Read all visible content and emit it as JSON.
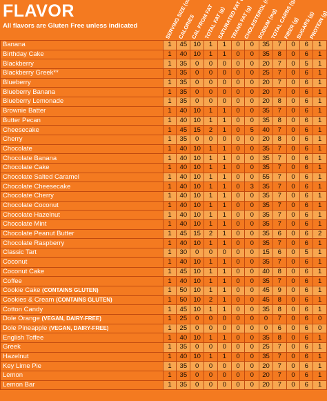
{
  "title": "FLAVOR",
  "subtitle": "All flavors are Gluten Free unless indicated",
  "columns": [
    "SERVING SIZE (oz)",
    "CALORIES",
    "CAL FROM FAT",
    "TOTAL FAT (g)",
    "SATURATED FAT (g)",
    "TRANS FAT (g)",
    "CHOLESTEROL (mg)",
    "SODIUM (mg)",
    "TOTAL CARBS (g)",
    "FIBER (g)",
    "SUGARS (g)",
    "PROTEIN (g)"
  ],
  "rows": [
    {
      "name": "Banana",
      "tag": "",
      "values": [
        "1",
        "45",
        "10",
        "1",
        "1",
        "0",
        "0",
        "35",
        "7",
        "0",
        "6",
        "1"
      ]
    },
    {
      "name": "Birthday Cake",
      "tag": "",
      "values": [
        "1",
        "40",
        "10",
        "1",
        "1",
        "0",
        "0",
        "35",
        "8",
        "0",
        "6",
        "1"
      ]
    },
    {
      "name": "Blackberry",
      "tag": "",
      "values": [
        "1",
        "35",
        "0",
        "0",
        "0",
        "0",
        "0",
        "20",
        "7",
        "0",
        "5",
        "1"
      ]
    },
    {
      "name": "Blackberry Greek**",
      "tag": "",
      "values": [
        "1",
        "35",
        "0",
        "0",
        "0",
        "0",
        "0",
        "25",
        "7",
        "0",
        "6",
        "1"
      ]
    },
    {
      "name": "Blueberry",
      "tag": "",
      "values": [
        "1",
        "35",
        "0",
        "0",
        "0",
        "0",
        "0",
        "20",
        "7",
        "0",
        "6",
        "1"
      ]
    },
    {
      "name": "Blueberry Banana",
      "tag": "",
      "values": [
        "1",
        "35",
        "0",
        "0",
        "0",
        "0",
        "0",
        "20",
        "7",
        "0",
        "6",
        "1"
      ]
    },
    {
      "name": "Blueberry Lemonade",
      "tag": "",
      "values": [
        "1",
        "35",
        "0",
        "0",
        "0",
        "0",
        "0",
        "20",
        "8",
        "0",
        "6",
        "1"
      ]
    },
    {
      "name": "Brownie Batter",
      "tag": "",
      "values": [
        "1",
        "40",
        "10",
        "1",
        "1",
        "0",
        "0",
        "35",
        "7",
        "0",
        "6",
        "1"
      ]
    },
    {
      "name": "Butter Pecan",
      "tag": "",
      "values": [
        "1",
        "40",
        "10",
        "1",
        "1",
        "0",
        "0",
        "35",
        "8",
        "0",
        "6",
        "1"
      ]
    },
    {
      "name": "Cheesecake",
      "tag": "",
      "values": [
        "1",
        "45",
        "15",
        "2",
        "1",
        "0",
        "5",
        "40",
        "7",
        "0",
        "6",
        "1"
      ]
    },
    {
      "name": "Cherry",
      "tag": "",
      "values": [
        "1",
        "35",
        "0",
        "0",
        "0",
        "0",
        "0",
        "20",
        "8",
        "0",
        "6",
        "1"
      ]
    },
    {
      "name": "Chocolate",
      "tag": "",
      "values": [
        "1",
        "40",
        "10",
        "1",
        "1",
        "0",
        "0",
        "35",
        "7",
        "0",
        "6",
        "1"
      ]
    },
    {
      "name": "Chocolate Banana",
      "tag": "",
      "values": [
        "1",
        "40",
        "10",
        "1",
        "1",
        "0",
        "0",
        "35",
        "7",
        "0",
        "6",
        "1"
      ]
    },
    {
      "name": "Chocolate Cake",
      "tag": "",
      "values": [
        "1",
        "40",
        "10",
        "1",
        "1",
        "0",
        "0",
        "35",
        "7",
        "0",
        "6",
        "1"
      ]
    },
    {
      "name": "Chocolate Salted Caramel",
      "tag": "",
      "values": [
        "1",
        "40",
        "10",
        "1",
        "1",
        "0",
        "0",
        "55",
        "7",
        "0",
        "6",
        "1"
      ]
    },
    {
      "name": "Chocolate Cheesecake",
      "tag": "",
      "values": [
        "1",
        "40",
        "10",
        "1",
        "1",
        "0",
        "3",
        "35",
        "7",
        "0",
        "6",
        "1"
      ]
    },
    {
      "name": "Chocolate Cherry",
      "tag": "",
      "values": [
        "1",
        "40",
        "10",
        "1",
        "1",
        "0",
        "0",
        "35",
        "7",
        "0",
        "6",
        "1"
      ]
    },
    {
      "name": "Chocolate Coconut",
      "tag": "",
      "values": [
        "1",
        "40",
        "10",
        "1",
        "1",
        "0",
        "0",
        "35",
        "7",
        "0",
        "6",
        "1"
      ]
    },
    {
      "name": "Chocolate Hazelnut",
      "tag": "",
      "values": [
        "1",
        "40",
        "10",
        "1",
        "1",
        "0",
        "0",
        "35",
        "7",
        "0",
        "6",
        "1"
      ]
    },
    {
      "name": "Chocolate Mint",
      "tag": "",
      "values": [
        "1",
        "40",
        "10",
        "1",
        "1",
        "0",
        "0",
        "35",
        "7",
        "0",
        "6",
        "1"
      ]
    },
    {
      "name": "Chocolate Peanut Butter",
      "tag": "",
      "values": [
        "1",
        "45",
        "15",
        "2",
        "1",
        "0",
        "0",
        "35",
        "6",
        "0",
        "6",
        "2"
      ]
    },
    {
      "name": "Chocolate Raspberry",
      "tag": "",
      "values": [
        "1",
        "40",
        "10",
        "1",
        "1",
        "0",
        "0",
        "35",
        "7",
        "0",
        "6",
        "1"
      ]
    },
    {
      "name": "Classic Tart",
      "tag": "",
      "values": [
        "1",
        "30",
        "0",
        "0",
        "0",
        "0",
        "0",
        "15",
        "6",
        "0",
        "5",
        "1"
      ]
    },
    {
      "name": "Coconut",
      "tag": "",
      "values": [
        "1",
        "40",
        "10",
        "1",
        "1",
        "0",
        "0",
        "35",
        "7",
        "0",
        "6",
        "1"
      ]
    },
    {
      "name": "Coconut Cake",
      "tag": "",
      "values": [
        "1",
        "45",
        "10",
        "1",
        "1",
        "0",
        "0",
        "40",
        "8",
        "0",
        "6",
        "1"
      ]
    },
    {
      "name": "Coffee",
      "tag": "",
      "values": [
        "1",
        "40",
        "10",
        "1",
        "1",
        "0",
        "0",
        "35",
        "7",
        "0",
        "6",
        "1"
      ]
    },
    {
      "name": "Cookie Cake",
      "tag": "(CONTAINS GLUTEN)",
      "values": [
        "1",
        "50",
        "10",
        "1",
        "1",
        "0",
        "0",
        "45",
        "9",
        "0",
        "6",
        "1"
      ]
    },
    {
      "name": "Cookies & Cream",
      "tag": "(CONTAINS GLUTEN)",
      "values": [
        "1",
        "50",
        "10",
        "2",
        "1",
        "0",
        "0",
        "45",
        "8",
        "0",
        "6",
        "1"
      ]
    },
    {
      "name": "Cotton Candy",
      "tag": "",
      "values": [
        "1",
        "45",
        "10",
        "1",
        "1",
        "0",
        "0",
        "35",
        "8",
        "0",
        "6",
        "1"
      ]
    },
    {
      "name": "Dole Orange",
      "tag": "(VEGAN, DAIRY-FREE)",
      "values": [
        "1",
        "25",
        "0",
        "0",
        "0",
        "0",
        "0",
        "0",
        "7",
        "0",
        "6",
        "0"
      ]
    },
    {
      "name": "Dole Pineapple",
      "tag": "(VEGAN, DAIRY-FREE)",
      "values": [
        "1",
        "25",
        "0",
        "0",
        "0",
        "0",
        "0",
        "0",
        "6",
        "0",
        "6",
        "0"
      ]
    },
    {
      "name": "English Toffee",
      "tag": "",
      "values": [
        "1",
        "40",
        "10",
        "1",
        "1",
        "0",
        "0",
        "35",
        "8",
        "0",
        "6",
        "1"
      ]
    },
    {
      "name": "Greek",
      "tag": "",
      "values": [
        "1",
        "35",
        "0",
        "0",
        "0",
        "0",
        "0",
        "25",
        "7",
        "0",
        "6",
        "1"
      ]
    },
    {
      "name": "Hazelnut",
      "tag": "",
      "values": [
        "1",
        "40",
        "10",
        "1",
        "1",
        "0",
        "0",
        "35",
        "7",
        "0",
        "6",
        "1"
      ]
    },
    {
      "name": "Key Lime Pie",
      "tag": "",
      "values": [
        "1",
        "35",
        "0",
        "0",
        "0",
        "0",
        "0",
        "20",
        "7",
        "0",
        "6",
        "1"
      ]
    },
    {
      "name": "Lemon",
      "tag": "",
      "values": [
        "1",
        "35",
        "0",
        "0",
        "0",
        "0",
        "0",
        "20",
        "7",
        "0",
        "6",
        "1"
      ]
    },
    {
      "name": "Lemon Bar",
      "tag": "",
      "values": [
        "1",
        "35",
        "0",
        "0",
        "0",
        "0",
        "0",
        "20",
        "7",
        "0",
        "6",
        "1"
      ]
    }
  ]
}
